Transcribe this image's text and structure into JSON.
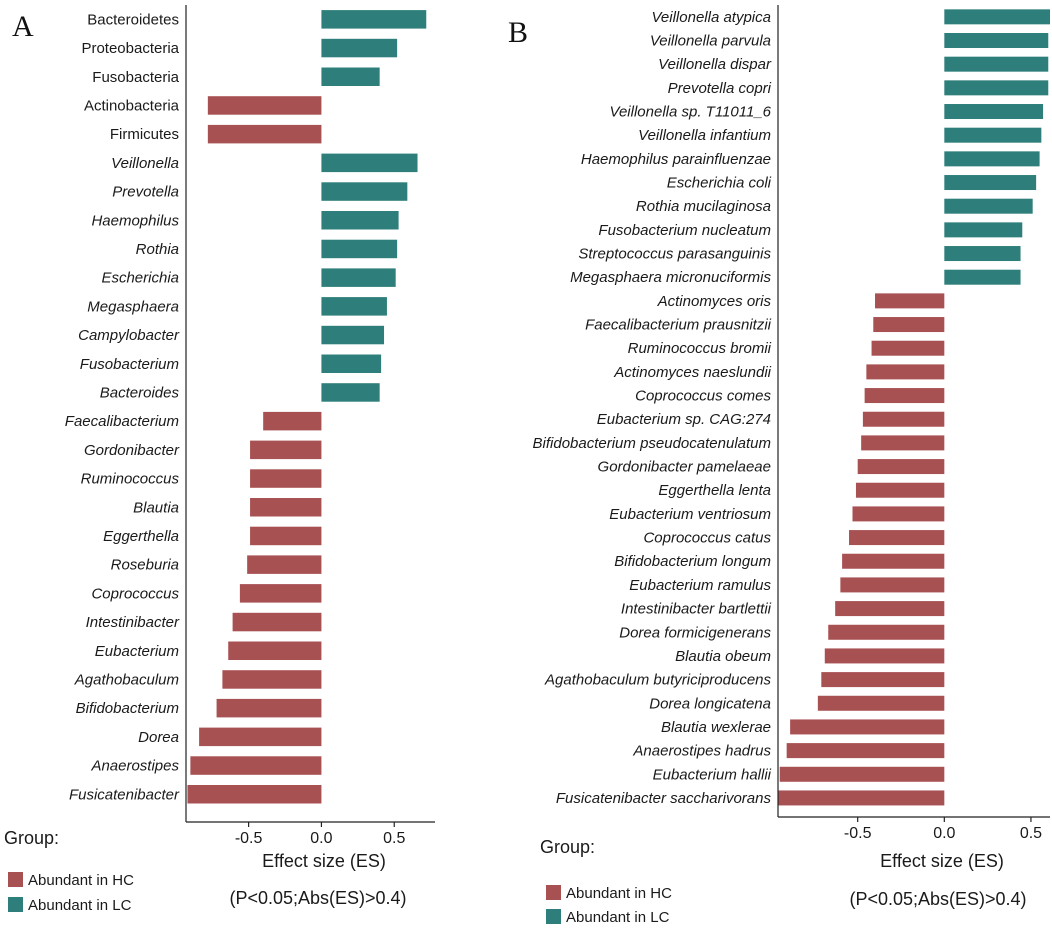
{
  "colors": {
    "hc": "#a85153",
    "lc": "#2e7f7b",
    "axis": "#222222"
  },
  "chart_data": [
    {
      "type": "bar",
      "orientation": "horizontal",
      "panel_label": "A",
      "xlabel": "Effect size (ES)",
      "subtitle": "(P<0.05;Abs(ES)>0.4)",
      "xlim": [
        -0.93,
        0.78
      ],
      "xticks": [
        -0.5,
        0,
        0.5
      ],
      "xtick_labels": [
        "-0.5",
        "0.0",
        "0.5"
      ],
      "legend": {
        "title": "Group:",
        "entries": [
          {
            "label": "Abundant in HC",
            "group": "hc"
          },
          {
            "label": "Abundant in LC",
            "group": "lc"
          }
        ]
      },
      "bars": [
        {
          "label": "Bacteroidetes",
          "value": 0.72,
          "italic": false
        },
        {
          "label": "Proteobacteria",
          "value": 0.52,
          "italic": false
        },
        {
          "label": "Fusobacteria",
          "value": 0.4,
          "italic": false
        },
        {
          "label": "Actinobacteria",
          "value": -0.78,
          "italic": false
        },
        {
          "label": "Firmicutes",
          "value": -0.78,
          "italic": false
        },
        {
          "label": "Veillonella",
          "value": 0.66,
          "italic": true
        },
        {
          "label": "Prevotella",
          "value": 0.59,
          "italic": true
        },
        {
          "label": "Haemophilus",
          "value": 0.53,
          "italic": true
        },
        {
          "label": "Rothia",
          "value": 0.52,
          "italic": true
        },
        {
          "label": "Escherichia",
          "value": 0.51,
          "italic": true
        },
        {
          "label": "Megasphaera",
          "value": 0.45,
          "italic": true
        },
        {
          "label": "Campylobacter",
          "value": 0.43,
          "italic": true
        },
        {
          "label": "Fusobacterium",
          "value": 0.41,
          "italic": true
        },
        {
          "label": "Bacteroides",
          "value": 0.4,
          "italic": true
        },
        {
          "label": "Faecalibacterium",
          "value": -0.4,
          "italic": true
        },
        {
          "label": "Gordonibacter",
          "value": -0.49,
          "italic": true
        },
        {
          "label": "Ruminococcus",
          "value": -0.49,
          "italic": true
        },
        {
          "label": "Blautia",
          "value": -0.49,
          "italic": true
        },
        {
          "label": "Eggerthella",
          "value": -0.49,
          "italic": true
        },
        {
          "label": "Roseburia",
          "value": -0.51,
          "italic": true
        },
        {
          "label": "Coprococcus",
          "value": -0.56,
          "italic": true
        },
        {
          "label": "Intestinibacter",
          "value": -0.61,
          "italic": true
        },
        {
          "label": "Eubacterium",
          "value": -0.64,
          "italic": true
        },
        {
          "label": "Agathobaculum",
          "value": -0.68,
          "italic": true
        },
        {
          "label": "Bifidobacterium",
          "value": -0.72,
          "italic": true
        },
        {
          "label": "Dorea",
          "value": -0.84,
          "italic": true
        },
        {
          "label": "Anaerostipes",
          "value": -0.9,
          "italic": true
        },
        {
          "label": "Fusicatenibacter",
          "value": -0.92,
          "italic": true
        }
      ]
    },
    {
      "type": "bar",
      "orientation": "horizontal",
      "panel_label": "B",
      "xlabel": "Effect size (ES)",
      "subtitle": "(P<0.05;Abs(ES)>0.4)",
      "xlim": [
        -0.96,
        0.61
      ],
      "xticks": [
        -0.5,
        0,
        0.5
      ],
      "xtick_labels": [
        "-0.5",
        "0.0",
        "0.5"
      ],
      "legend": {
        "title": "Group:",
        "entries": [
          {
            "label": "Abundant in HC",
            "group": "hc"
          },
          {
            "label": "Abundant in LC",
            "group": "lc"
          }
        ]
      },
      "bars": [
        {
          "label": "Veillonella atypica",
          "value": 0.61,
          "italic": true
        },
        {
          "label": "Veillonella parvula",
          "value": 0.6,
          "italic": true
        },
        {
          "label": "Veillonella dispar",
          "value": 0.6,
          "italic": true
        },
        {
          "label": "Prevotella copri",
          "value": 0.6,
          "italic": true
        },
        {
          "label": "Veillonella sp. T11011_6",
          "value": 0.57,
          "italic": true
        },
        {
          "label": "Veillonella infantium",
          "value": 0.56,
          "italic": true
        },
        {
          "label": "Haemophilus parainfluenzae",
          "value": 0.55,
          "italic": true
        },
        {
          "label": "Escherichia coli",
          "value": 0.53,
          "italic": true
        },
        {
          "label": "Rothia mucilaginosa",
          "value": 0.51,
          "italic": true
        },
        {
          "label": "Fusobacterium nucleatum",
          "value": 0.45,
          "italic": true
        },
        {
          "label": "Streptococcus parasanguinis",
          "value": 0.44,
          "italic": true
        },
        {
          "label": "Megasphaera micronuciformis",
          "value": 0.44,
          "italic": true
        },
        {
          "label": "Actinomyces oris",
          "value": -0.4,
          "italic": true
        },
        {
          "label": "Faecalibacterium prausnitzii",
          "value": -0.41,
          "italic": true
        },
        {
          "label": "Ruminococcus bromii",
          "value": -0.42,
          "italic": true
        },
        {
          "label": "Actinomyces naeslundii",
          "value": -0.45,
          "italic": true
        },
        {
          "label": "Coprococcus comes",
          "value": -0.46,
          "italic": true
        },
        {
          "label": "Eubacterium sp. CAG:274",
          "value": -0.47,
          "italic": true
        },
        {
          "label": "Bifidobacterium pseudocatenulatum",
          "value": -0.48,
          "italic": true
        },
        {
          "label": "Gordonibacter pamelaeae",
          "value": -0.5,
          "italic": true
        },
        {
          "label": "Eggerthella lenta",
          "value": -0.51,
          "italic": true
        },
        {
          "label": "Eubacterium ventriosum",
          "value": -0.53,
          "italic": true
        },
        {
          "label": "Coprococcus catus",
          "value": -0.55,
          "italic": true
        },
        {
          "label": "Bifidobacterium longum",
          "value": -0.59,
          "italic": true
        },
        {
          "label": "Eubacterium ramulus",
          "value": -0.6,
          "italic": true
        },
        {
          "label": "Intestinibacter bartlettii",
          "value": -0.63,
          "italic": true
        },
        {
          "label": "Dorea formicigenerans",
          "value": -0.67,
          "italic": true
        },
        {
          "label": "Blautia obeum",
          "value": -0.69,
          "italic": true
        },
        {
          "label": "Agathobaculum butyriciproducens",
          "value": -0.71,
          "italic": true
        },
        {
          "label": "Dorea longicatena",
          "value": -0.73,
          "italic": true
        },
        {
          "label": "Blautia wexlerae",
          "value": -0.89,
          "italic": true
        },
        {
          "label": "Anaerostipes hadrus",
          "value": -0.91,
          "italic": true
        },
        {
          "label": "Eubacterium hallii",
          "value": -0.95,
          "italic": true
        },
        {
          "label": "Fusicatenibacter saccharivorans",
          "value": -0.96,
          "italic": true
        }
      ]
    }
  ]
}
